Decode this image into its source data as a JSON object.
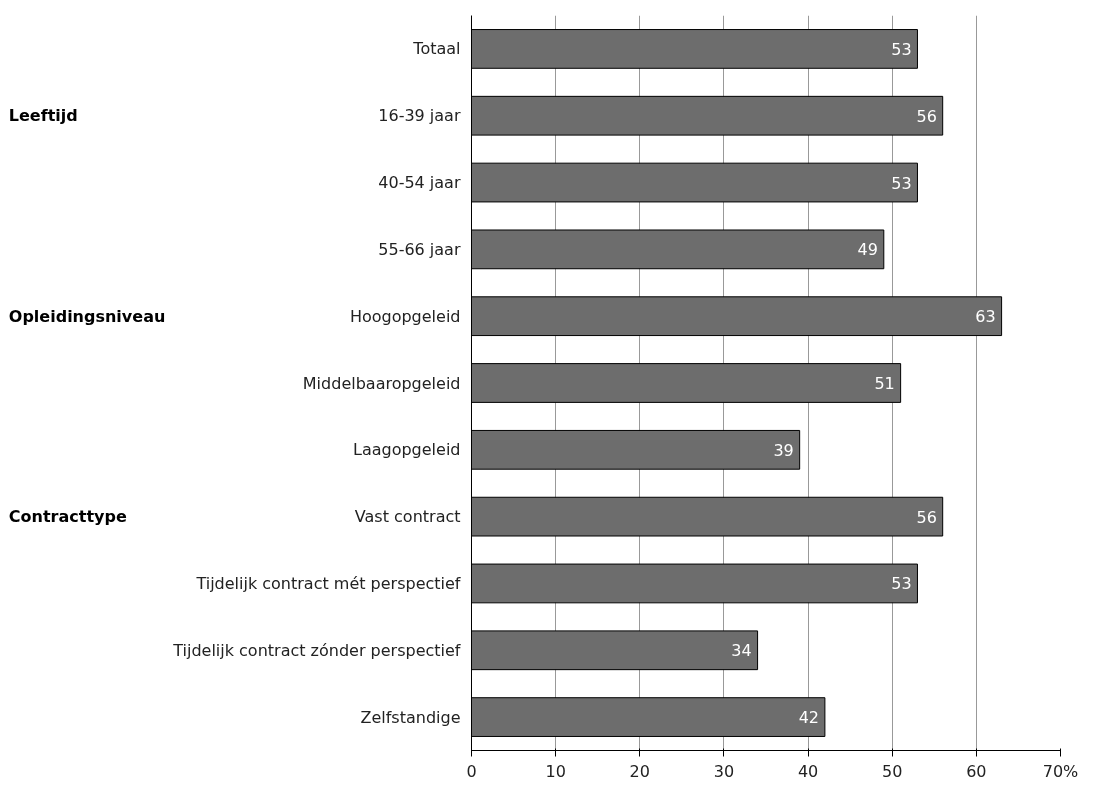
{
  "chart_data": {
    "type": "bar",
    "orientation": "horizontal",
    "categories": [
      "Totaal",
      "16-39 jaar",
      "40-54 jaar",
      "55-66 jaar",
      "Hoogopgeleid",
      "Middelbaaropgeleid",
      "Laagopgeleid",
      "Vast contract",
      "Tijdelijk contract mét perspectief",
      "Tijdelijk contract zónder perspectief",
      "Zelfstandige"
    ],
    "values": [
      53,
      56,
      53,
      49,
      63,
      51,
      39,
      56,
      53,
      34,
      42
    ],
    "color": "#6d6d6d",
    "data_labels": true,
    "xlim": [
      0,
      70
    ],
    "xticks": [
      0,
      10,
      20,
      30,
      40,
      50,
      60,
      {
        "value": 70,
        "label": "70%"
      }
    ],
    "grid": "x",
    "annotations": [
      "Leeftijd",
      "Opleidingsniveau",
      "Contracttype"
    ]
  }
}
